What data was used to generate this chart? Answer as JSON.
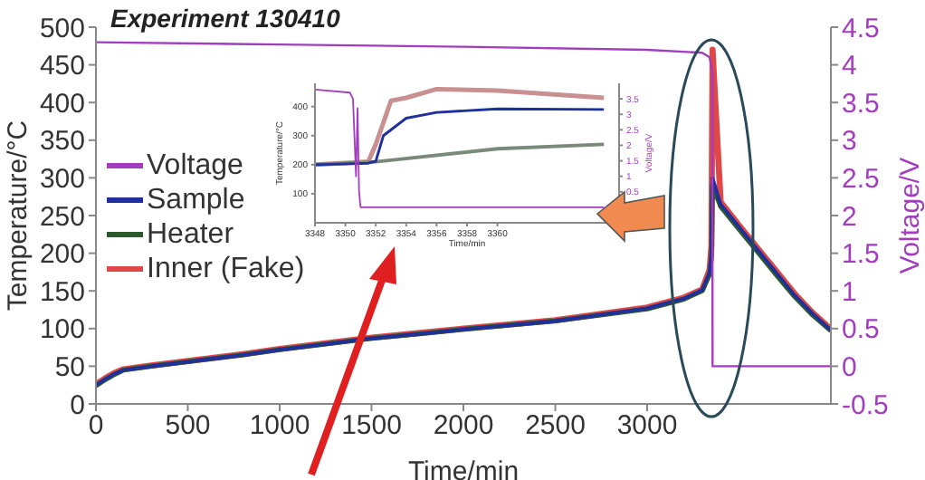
{
  "chart_data": [
    {
      "type": "line",
      "title": "Experiment 130410",
      "xlabel": "Time/min",
      "ylabel": "Temperature/°C",
      "y2label": "Voltage/V",
      "xlim": [
        0,
        4000
      ],
      "xticks": [
        0,
        500,
        1000,
        1500,
        2000,
        2500,
        3000
      ],
      "ylim": [
        0,
        500
      ],
      "yticks": [
        0,
        50,
        100,
        150,
        200,
        250,
        300,
        350,
        400,
        450,
        500
      ],
      "y2lim": [
        -0.5,
        4.5
      ],
      "y2ticks": [
        -0.5,
        0,
        0.5,
        1,
        1.5,
        2,
        2.5,
        3,
        3.5,
        4,
        4.5
      ],
      "legend": "left",
      "marker": "none",
      "series": [
        {
          "name": "Voltage",
          "color": "#a33dbf",
          "axis": "y2",
          "x": [
            0,
            1000,
            2000,
            3000,
            3300,
            3340,
            3355,
            3356,
            4000
          ],
          "values": [
            4.3,
            4.27,
            4.24,
            4.2,
            4.16,
            4.1,
            3.9,
            0,
            0
          ]
        },
        {
          "name": "Sample",
          "color": "#1f2f9c",
          "x": [
            0,
            50,
            100,
            150,
            300,
            500,
            800,
            1000,
            1200,
            1500,
            1800,
            2000,
            2500,
            3000,
            3200,
            3300,
            3340,
            3350,
            3356,
            3400,
            3500,
            3600,
            3700,
            3800,
            3900,
            4000
          ],
          "values": [
            25,
            33,
            40,
            45,
            50,
            56,
            65,
            72,
            78,
            87,
            94,
            99,
            110,
            127,
            140,
            151,
            175,
            200,
            300,
            265,
            235,
            205,
            175,
            145,
            120,
            98
          ]
        },
        {
          "name": "Heater",
          "color": "#2d5a2d",
          "x": [
            0,
            50,
            100,
            150,
            300,
            500,
            800,
            1000,
            1200,
            1500,
            1800,
            2000,
            2500,
            3000,
            3200,
            3300,
            3340,
            3350,
            3356,
            3400,
            3500,
            3600,
            3700,
            3800,
            3900,
            4000
          ],
          "values": [
            24,
            32,
            39,
            45,
            50,
            56,
            65,
            72,
            78,
            87,
            94,
            99,
            110,
            126,
            139,
            150,
            172,
            195,
            290,
            262,
            232,
            202,
            172,
            143,
            118,
            97
          ]
        },
        {
          "name": "Inner (Fake)",
          "color": "#e04848",
          "x": [
            0,
            50,
            100,
            150,
            300,
            500,
            800,
            1000,
            1200,
            1500,
            1800,
            2000,
            2500,
            3000,
            3200,
            3300,
            3340,
            3350,
            3356,
            3400,
            3500,
            3600,
            3700,
            3800,
            3900,
            4000
          ],
          "values": [
            26,
            34,
            41,
            46,
            51,
            57,
            66,
            73,
            79,
            88,
            95,
            100,
            111,
            128,
            141,
            152,
            178,
            210,
            470,
            268,
            237,
            207,
            177,
            147,
            121,
            99
          ]
        }
      ]
    },
    {
      "type": "line",
      "xlabel": "Time/min",
      "ylabel": "Temperature/°C",
      "y2label": "Voltage/V",
      "xlim": [
        3348,
        3368
      ],
      "xticks": [
        3348,
        3350,
        3352,
        3354,
        3356,
        3358,
        3360
      ],
      "ylim": [
        0,
        480
      ],
      "yticks": [
        100,
        200,
        300,
        400
      ],
      "y2lim": [
        -0.5,
        4
      ],
      "y2ticks": [
        0.5,
        1,
        1.5,
        2,
        2.5,
        3,
        3.5
      ],
      "marker": "none",
      "series": [
        {
          "color": "#a33dbf",
          "axis": "y2",
          "x": [
            3348,
            3350.3,
            3350.5,
            3350.7,
            3350.8,
            3350.9,
            3351,
            3367
          ],
          "values": [
            3.8,
            3.7,
            3.5,
            1,
            3.2,
            0.5,
            0,
            0
          ]
        },
        {
          "color": "#1f2f9c",
          "x": [
            3348,
            3351.5,
            3352,
            3352.5,
            3354,
            3356,
            3360,
            3367
          ],
          "values": [
            200,
            205,
            212,
            300,
            360,
            380,
            392,
            390
          ]
        },
        {
          "color": "#7a8a7a",
          "x": [
            3348,
            3352,
            3360,
            3367
          ],
          "values": [
            200,
            210,
            255,
            270
          ]
        },
        {
          "color": "#c89090",
          "x": [
            3348,
            3351.5,
            3352,
            3353,
            3354,
            3356,
            3360,
            3367
          ],
          "values": [
            200,
            210,
            270,
            420,
            430,
            460,
            455,
            430
          ]
        }
      ]
    }
  ]
}
